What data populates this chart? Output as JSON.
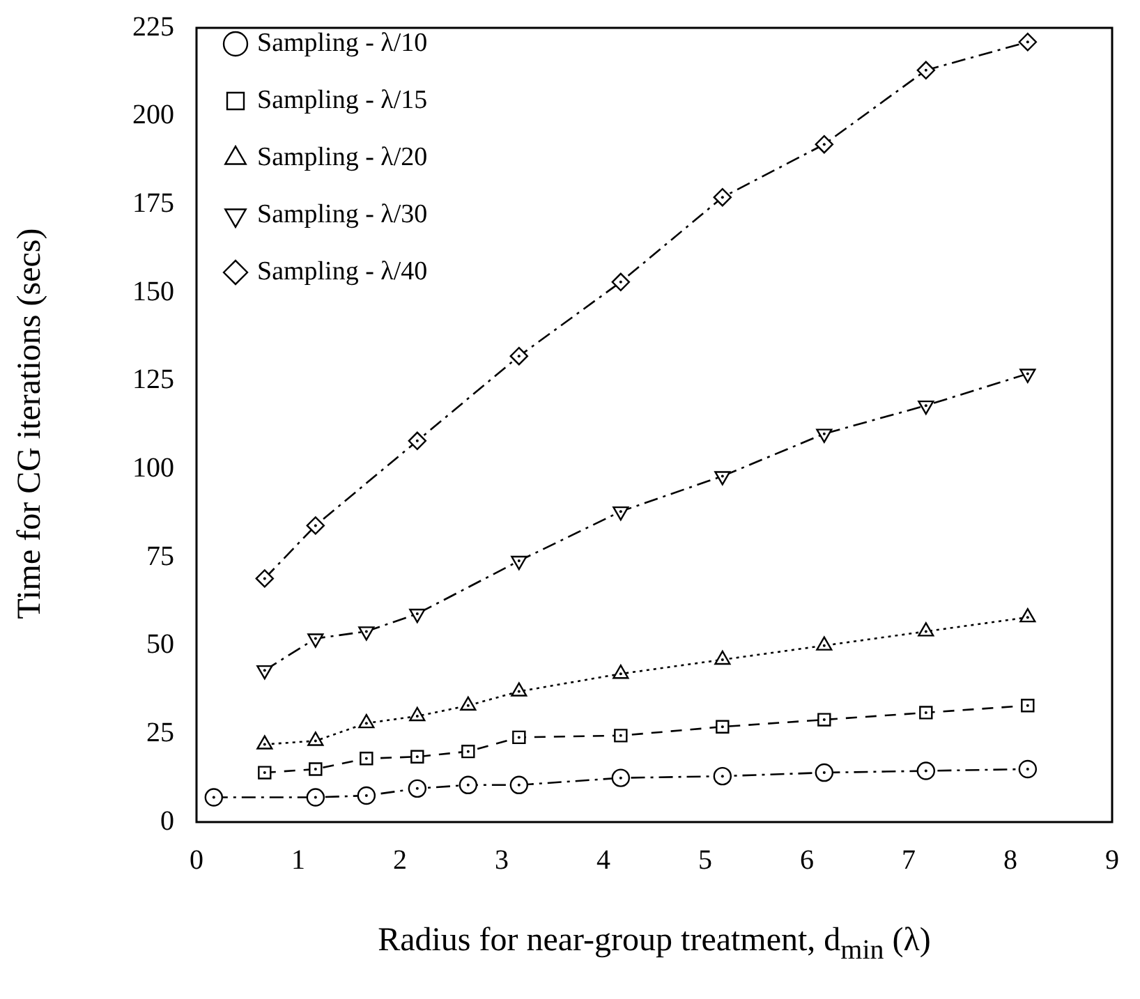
{
  "chart_data": {
    "type": "line",
    "xlabel": "Radius for near-group treatment, d$_{min}$ (λ)",
    "ylabel": "Time for CG iterations (secs)",
    "xlim": [
      0,
      9
    ],
    "xticks": [
      0,
      1,
      2,
      3,
      4,
      5,
      6,
      7,
      8,
      9
    ],
    "ylim": [
      0,
      225
    ],
    "yticks": [
      0,
      25,
      50,
      75,
      100,
      125,
      150,
      175,
      200,
      225
    ],
    "grid": false,
    "legend": "top left",
    "series": [
      {
        "name": "Sampling - λ/10",
        "color": "#000000",
        "marker": "circle",
        "line_style": "dashdot",
        "x": [
          0.17,
          1.17,
          1.67,
          2.17,
          2.67,
          3.17,
          4.17,
          5.17,
          6.17,
          7.17,
          8.17
        ],
        "values": [
          7,
          7,
          7.5,
          9.5,
          10.5,
          10.5,
          12.5,
          13,
          14,
          14.5,
          15
        ]
      },
      {
        "name": "Sampling - λ/15",
        "color": "#000000",
        "marker": "square",
        "line_style": "dashed",
        "x": [
          0.67,
          1.17,
          1.67,
          2.17,
          2.67,
          3.17,
          4.17,
          5.17,
          6.17,
          7.17,
          8.17
        ],
        "values": [
          14,
          15,
          18,
          18.5,
          20,
          24,
          24.5,
          27,
          29,
          31,
          33
        ]
      },
      {
        "name": "Sampling - λ/20",
        "color": "#000000",
        "marker": "triangle",
        "line_style": "dotted",
        "x": [
          0.67,
          1.17,
          1.67,
          2.17,
          2.67,
          3.17,
          4.17,
          5.17,
          6.17,
          7.17,
          8.17
        ],
        "values": [
          22,
          23,
          28,
          30,
          33,
          37,
          42,
          46,
          50,
          54,
          58
        ]
      },
      {
        "name": "Sampling - λ/30",
        "color": "#000000",
        "marker": "triangle-down",
        "line_style": "dashdot",
        "x": [
          0.67,
          1.17,
          1.67,
          2.17,
          3.17,
          4.17,
          5.17,
          6.17,
          7.17,
          8.17
        ],
        "values": [
          43,
          52,
          54,
          59,
          74,
          88,
          98,
          110,
          118,
          127
        ]
      },
      {
        "name": "Sampling - λ/40",
        "color": "#000000",
        "marker": "diamond",
        "line_style": "dashdot",
        "x": [
          0.67,
          1.17,
          2.17,
          3.17,
          4.17,
          5.17,
          6.17,
          7.17,
          8.17
        ],
        "values": [
          69,
          84,
          108,
          132,
          153,
          177,
          192,
          213,
          221
        ]
      }
    ]
  }
}
